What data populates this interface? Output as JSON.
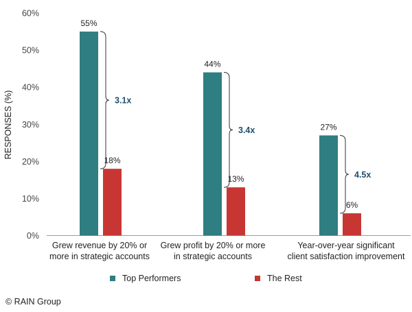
{
  "chart_data": {
    "type": "bar",
    "ylabel": "RESPONSES (%)",
    "ylim": [
      0,
      60
    ],
    "yticks": [
      "0%",
      "10%",
      "20%",
      "30%",
      "40%",
      "50%",
      "60%"
    ],
    "categories": [
      [
        "Grew revenue by 20% or",
        "more in strategic accounts"
      ],
      [
        "Grew profit by 20% or more",
        "in strategic accounts"
      ],
      [
        "Year-over-year significant",
        "client satisfaction improvement"
      ]
    ],
    "series": [
      {
        "name": "Top Performers",
        "color": "#2e7e82",
        "values": [
          55,
          44,
          27
        ],
        "labels": [
          "55%",
          "44%",
          "27%"
        ]
      },
      {
        "name": "The Rest",
        "color": "#c83634",
        "values": [
          18,
          13,
          6
        ],
        "labels": [
          "18%",
          "13%",
          "6%"
        ]
      }
    ],
    "annotations": [
      "3.1x",
      "3.4x",
      "4.5x"
    ],
    "annotation_color": "#1f4e6e",
    "grid": false,
    "legend_position": "bottom"
  },
  "legend": {
    "top_performers": "Top Performers",
    "the_rest": "The Rest"
  },
  "copyright": "© RAIN Group"
}
